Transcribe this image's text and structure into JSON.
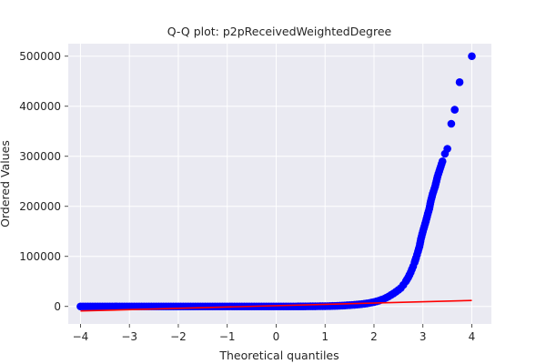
{
  "chart_data": {
    "type": "scatter",
    "title": "Q-Q plot: p2pReceivedWeightedDegree",
    "xlabel": "Theoretical quantiles",
    "ylabel": "Ordered Values",
    "xlim": [
      -4.25,
      4.4
    ],
    "ylim": [
      -35000,
      525000
    ],
    "xticks": [
      -4,
      -3,
      -2,
      -1,
      0,
      1,
      2,
      3,
      4
    ],
    "xtick_labels": [
      "−4",
      "−3",
      "−2",
      "−1",
      "0",
      "1",
      "2",
      "3",
      "4"
    ],
    "yticks": [
      0,
      100000,
      200000,
      300000,
      400000,
      500000
    ],
    "ytick_labels": [
      "0",
      "100000",
      "200000",
      "300000",
      "400000",
      "500000"
    ],
    "grid": true,
    "background": "#EAEAF2",
    "point_color": "#0000FF",
    "line_color": "#FF0000",
    "fit_line": {
      "x": [
        -4,
        4
      ],
      "y": [
        -9000,
        12000
      ]
    },
    "series": [
      {
        "x": [
          -4.0,
          -3.7,
          -3.55,
          -3.4,
          -3.2,
          -3.0,
          -2.8,
          -2.6,
          -2.4,
          -2.2,
          -2.0,
          -1.8,
          -1.6,
          -1.4,
          -1.2,
          -1.0,
          -0.8,
          -0.6,
          -0.4,
          -0.2,
          0.0,
          0.2,
          0.4,
          0.6,
          0.8,
          1.0,
          1.1,
          1.2,
          1.3,
          1.4,
          1.5,
          1.6,
          1.7,
          1.8,
          1.9,
          2.0,
          2.1,
          2.2,
          2.3,
          2.4,
          2.5,
          2.55,
          2.6,
          2.65,
          2.7,
          2.75,
          2.8,
          2.83,
          2.86,
          2.9,
          2.93,
          2.96,
          3.0,
          3.03,
          3.06,
          3.1,
          3.13,
          3.16,
          3.2,
          3.25,
          3.3,
          3.35,
          3.4,
          3.45,
          3.5,
          3.58,
          3.65,
          3.75,
          4.0
        ],
        "y": [
          0,
          0,
          0,
          0,
          0,
          0,
          0,
          0,
          0,
          0,
          0,
          0,
          0,
          0,
          0,
          0,
          0,
          0,
          0,
          0,
          0,
          0,
          0,
          200,
          400,
          600,
          800,
          1100,
          1500,
          2000,
          2600,
          3300,
          4200,
          5300,
          6800,
          8800,
          11500,
          15000,
          20000,
          26000,
          33000,
          37000,
          43000,
          50000,
          58000,
          68000,
          80000,
          88000,
          97000,
          110000,
          120000,
          135000,
          150000,
          160000,
          170000,
          185000,
          195000,
          210000,
          225000,
          240000,
          260000,
          275000,
          290000,
          305000,
          315000,
          365000,
          393000,
          448000,
          500000
        ]
      }
    ]
  }
}
